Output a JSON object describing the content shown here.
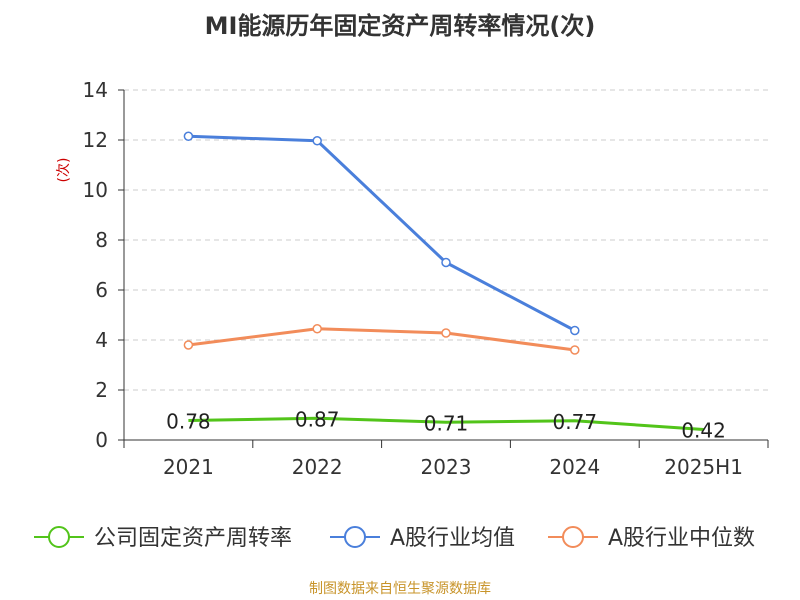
{
  "chart_data": {
    "type": "line",
    "title": "MI能源历年固定资产周转率情况(次)",
    "ylabel": "(次)",
    "xlabel": "",
    "categories": [
      "2021",
      "2022",
      "2023",
      "2024",
      "2025H1"
    ],
    "ylim": [
      0,
      14
    ],
    "yticks": [
      "0",
      "2",
      "4",
      "6",
      "8",
      "10",
      "12",
      "14"
    ],
    "grid": true,
    "legend_position": "bottom",
    "series": [
      {
        "name": "公司固定资产周转率",
        "color": "#52c41a",
        "values": [
          0.78,
          0.87,
          0.71,
          0.77,
          0.42
        ],
        "data_labels": [
          "0.78",
          "0.87",
          "0.71",
          "0.77",
          "0.42"
        ]
      },
      {
        "name": "A股行业均值",
        "color": "#4a7fdb",
        "values": [
          12.15,
          11.97,
          7.1,
          4.38,
          null
        ]
      },
      {
        "name": "A股行业中位数",
        "color": "#f28c5a",
        "values": [
          3.8,
          4.45,
          4.28,
          3.6,
          null
        ]
      }
    ]
  },
  "footer": "制图数据来自恒生聚源数据库"
}
